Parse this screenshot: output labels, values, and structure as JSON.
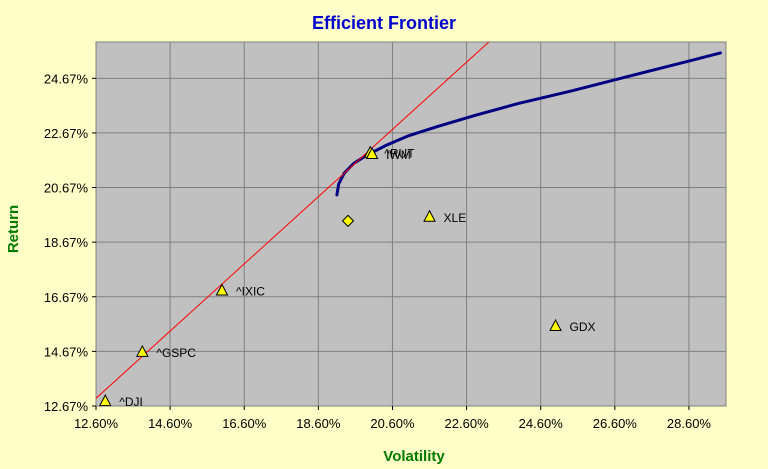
{
  "chart_data": {
    "type": "scatter",
    "title": "Efficient Frontier",
    "xlabel": "Volatility",
    "ylabel": "Return",
    "xlim": [
      12.6,
      29.6
    ],
    "ylim": [
      12.67,
      26.0
    ],
    "x_ticks": [
      "12.60%",
      "14.60%",
      "16.60%",
      "18.60%",
      "20.60%",
      "22.60%",
      "24.60%",
      "26.60%",
      "28.60%"
    ],
    "x_tick_values": [
      12.6,
      14.6,
      16.6,
      18.6,
      20.6,
      22.6,
      24.6,
      26.6,
      28.6
    ],
    "y_ticks": [
      "12.67%",
      "14.67%",
      "16.67%",
      "18.67%",
      "20.67%",
      "22.67%",
      "24.67%"
    ],
    "y_tick_values": [
      12.67,
      14.67,
      16.67,
      18.67,
      20.67,
      22.67,
      24.67
    ],
    "grid": true,
    "series": [
      {
        "kind": "assets",
        "marker": "triangle",
        "points": [
          {
            "label": "^DJI",
            "x": 12.85,
            "y": 12.85
          },
          {
            "label": "^GSPC",
            "x": 13.85,
            "y": 14.65
          },
          {
            "label": "^IXIC",
            "x": 16.0,
            "y": 16.9
          },
          {
            "label": "^RUT",
            "x": 20.0,
            "y": 21.95
          },
          {
            "label": "IWM",
            "x": 20.05,
            "y": 21.9
          },
          {
            "label": "XLE",
            "x": 21.6,
            "y": 19.6
          },
          {
            "label": "GDX",
            "x": 25.0,
            "y": 15.6
          }
        ]
      },
      {
        "kind": "portfolio",
        "marker": "diamond",
        "points": [
          {
            "x": 19.4,
            "y": 19.45
          }
        ]
      },
      {
        "kind": "frontier",
        "line": "curve",
        "points": [
          {
            "x": 19.1,
            "y": 20.4
          },
          {
            "x": 19.15,
            "y": 20.8
          },
          {
            "x": 19.3,
            "y": 21.2
          },
          {
            "x": 19.55,
            "y": 21.55
          },
          {
            "x": 19.9,
            "y": 21.85
          },
          {
            "x": 20.4,
            "y": 22.2
          },
          {
            "x": 21.0,
            "y": 22.55
          },
          {
            "x": 21.8,
            "y": 22.9
          },
          {
            "x": 22.8,
            "y": 23.3
          },
          {
            "x": 24.0,
            "y": 23.75
          },
          {
            "x": 25.4,
            "y": 24.2
          },
          {
            "x": 27.0,
            "y": 24.75
          },
          {
            "x": 28.6,
            "y": 25.3
          },
          {
            "x": 29.45,
            "y": 25.6
          }
        ]
      },
      {
        "kind": "capital-market-line",
        "line": "straight",
        "points": [
          {
            "x": 12.6,
            "y": 12.95
          },
          {
            "x": 23.2,
            "y": 26.0
          }
        ]
      }
    ],
    "colors": {
      "frontier": "#000080",
      "cml": "#ff0000",
      "marker_fill": "#ffff00",
      "plot_bg": "#c0c0c0",
      "title": "#0000cc",
      "axis_title": "#007a00",
      "background": "#ffffc8"
    }
  }
}
